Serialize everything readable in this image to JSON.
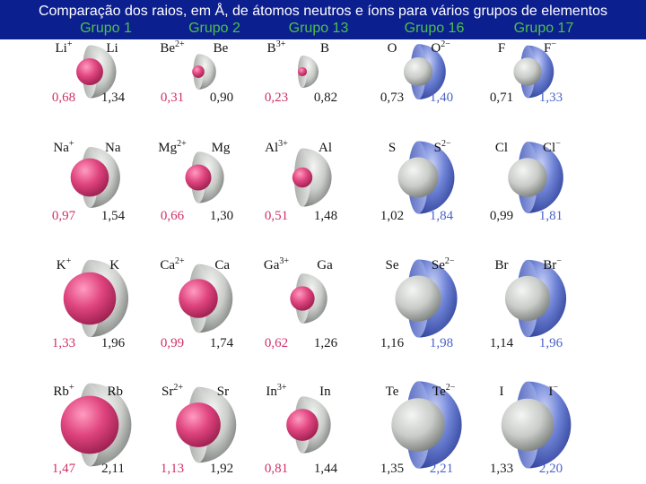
{
  "title": "Comparação dos raios, em  Å, de átomos neutros e íons para vários grupos de elementos",
  "colors": {
    "header_bg": "#0c1f8f",
    "title_text": "#ffffff",
    "group_label": "#4cc04c",
    "cation_sphere": "#e0457f",
    "neutral_sphere": "#c8cbc8",
    "anion_sphere": "#6e82d6",
    "cation_value": "#d0306a",
    "anion_value": "#4a62c8"
  },
  "groups": [
    {
      "label": "Grupo 1",
      "pairs": [
        {
          "ion": {
            "symbol": "Li",
            "charge": "+",
            "radius": "0,68",
            "kind": "cation"
          },
          "atom": {
            "symbol": "Li",
            "radius": "1,34"
          }
        },
        {
          "ion": {
            "symbol": "Na",
            "charge": "+",
            "radius": "0,97",
            "kind": "cation"
          },
          "atom": {
            "symbol": "Na",
            "radius": "1,54"
          }
        },
        {
          "ion": {
            "symbol": "K",
            "charge": "+",
            "radius": "1,33",
            "kind": "cation"
          },
          "atom": {
            "symbol": "K",
            "radius": "1,96"
          }
        },
        {
          "ion": {
            "symbol": "Rb",
            "charge": "+",
            "radius": "1,47",
            "kind": "cation"
          },
          "atom": {
            "symbol": "Rb",
            "radius": "2,11"
          }
        }
      ]
    },
    {
      "label": "Grupo 2",
      "pairs": [
        {
          "ion": {
            "symbol": "Be",
            "charge": "2+",
            "radius": "0,31",
            "kind": "cation"
          },
          "atom": {
            "symbol": "Be",
            "radius": "0,90"
          }
        },
        {
          "ion": {
            "symbol": "Mg",
            "charge": "2+",
            "radius": "0,66",
            "kind": "cation"
          },
          "atom": {
            "symbol": "Mg",
            "radius": "1,30"
          }
        },
        {
          "ion": {
            "symbol": "Ca",
            "charge": "2+",
            "radius": "0,99",
            "kind": "cation"
          },
          "atom": {
            "symbol": "Ca",
            "radius": "1,74"
          }
        },
        {
          "ion": {
            "symbol": "Sr",
            "charge": "2+",
            "radius": "1,13",
            "kind": "cation"
          },
          "atom": {
            "symbol": "Sr",
            "radius": "1,92"
          }
        }
      ]
    },
    {
      "label": "Grupo 13",
      "pairs": [
        {
          "ion": {
            "symbol": "B",
            "charge": "3+",
            "radius": "0,23",
            "kind": "cation"
          },
          "atom": {
            "symbol": "B",
            "radius": "0,82"
          }
        },
        {
          "ion": {
            "symbol": "Al",
            "charge": "3+",
            "radius": "0,51",
            "kind": "cation"
          },
          "atom": {
            "symbol": "Al",
            "radius": "1,48"
          }
        },
        {
          "ion": {
            "symbol": "Ga",
            "charge": "3+",
            "radius": "0,62",
            "kind": "cation"
          },
          "atom": {
            "symbol": "Ga",
            "radius": "1,26"
          }
        },
        {
          "ion": {
            "symbol": "In",
            "charge": "3+",
            "radius": "0,81",
            "kind": "cation"
          },
          "atom": {
            "symbol": "In",
            "radius": "1,44"
          }
        }
      ]
    },
    {
      "label": "Grupo 16",
      "pairs": [
        {
          "atom": {
            "symbol": "O",
            "radius": "0,73"
          },
          "ion": {
            "symbol": "O",
            "charge": "2−",
            "radius": "1,40",
            "kind": "anion"
          }
        },
        {
          "atom": {
            "symbol": "S",
            "radius": "1,02"
          },
          "ion": {
            "symbol": "S",
            "charge": "2−",
            "radius": "1,84",
            "kind": "anion"
          }
        },
        {
          "atom": {
            "symbol": "Se",
            "radius": "1,16"
          },
          "ion": {
            "symbol": "Se",
            "charge": "2−",
            "radius": "1,98",
            "kind": "anion"
          }
        },
        {
          "atom": {
            "symbol": "Te",
            "radius": "1,35"
          },
          "ion": {
            "symbol": "Te",
            "charge": "2−",
            "radius": "2,21",
            "kind": "anion"
          }
        }
      ]
    },
    {
      "label": "Grupo 17",
      "pairs": [
        {
          "atom": {
            "symbol": "F",
            "radius": "0,71"
          },
          "ion": {
            "symbol": "F",
            "charge": "−",
            "radius": "1,33",
            "kind": "anion"
          }
        },
        {
          "atom": {
            "symbol": "Cl",
            "radius": "0,99"
          },
          "ion": {
            "symbol": "Cl",
            "charge": "−",
            "radius": "1,81",
            "kind": "anion"
          }
        },
        {
          "atom": {
            "symbol": "Br",
            "radius": "1,14"
          },
          "ion": {
            "symbol": "Br",
            "charge": "−",
            "radius": "1,96",
            "kind": "anion"
          }
        },
        {
          "atom": {
            "symbol": "I",
            "radius": "1,33"
          },
          "ion": {
            "symbol": "I",
            "charge": "−",
            "radius": "2,20",
            "kind": "anion"
          }
        }
      ]
    }
  ]
}
